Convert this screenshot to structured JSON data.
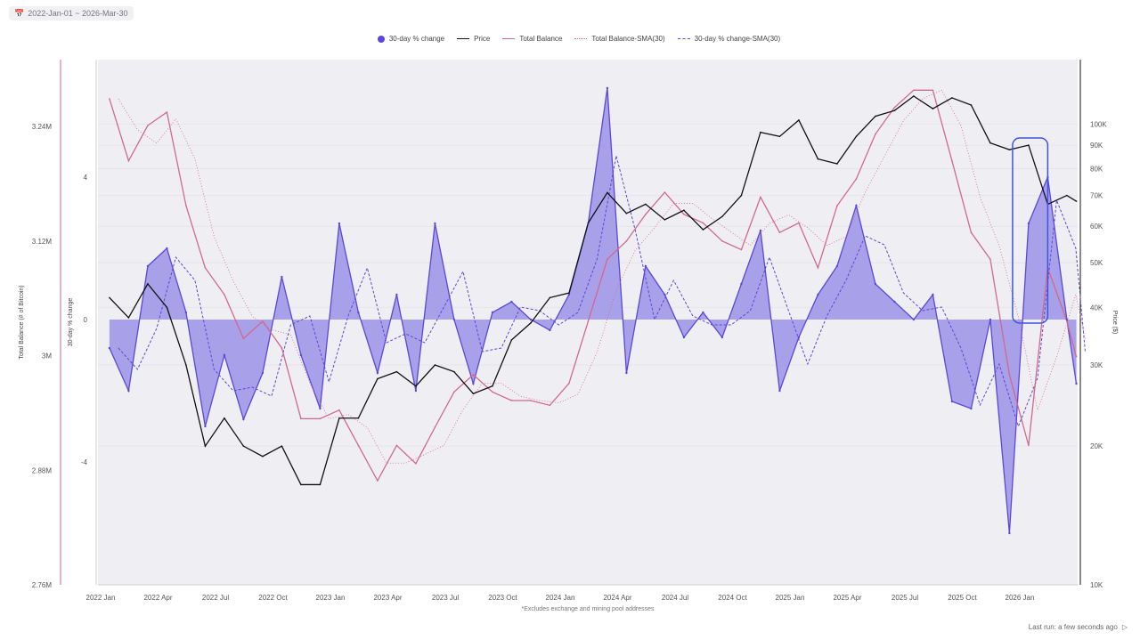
{
  "date_range": "2022-Jan-01 ~ 2026-Mar-30",
  "legend": [
    "30-day % change",
    "Price",
    "Total Balance",
    "Total Balance-SMA(30)",
    "30-day % change-SMA(30)"
  ],
  "footnote": "*Excludes exchange and mining pool addresses",
  "last_run": "Last run: a few seconds ago",
  "colors": {
    "change": "#5b47d6",
    "change_fill": "#9b93e6",
    "price": "#111111",
    "balance": "#d0698a",
    "plot_bg": "#efeff3",
    "highlight": "#3b55e0"
  },
  "chart_data": {
    "type": "line",
    "x": [
      "2022-01",
      "2022-02",
      "2022-03",
      "2022-04",
      "2022-05",
      "2022-06",
      "2022-07",
      "2022-08",
      "2022-09",
      "2022-10",
      "2022-11",
      "2022-12",
      "2023-01",
      "2023-02",
      "2023-03",
      "2023-04",
      "2023-05",
      "2023-06",
      "2023-07",
      "2023-08",
      "2023-09",
      "2023-10",
      "2023-11",
      "2023-12",
      "2024-01",
      "2024-02",
      "2024-03",
      "2024-04",
      "2024-05",
      "2024-06",
      "2024-07",
      "2024-08",
      "2024-09",
      "2024-10",
      "2024-11",
      "2024-12",
      "2025-01",
      "2025-02",
      "2025-03",
      "2025-04",
      "2025-05",
      "2025-06",
      "2025-07",
      "2025-08",
      "2025-09",
      "2025-10",
      "2025-11",
      "2025-12",
      "2026-01",
      "2026-02",
      "2026-03",
      "2026-03-30"
    ],
    "series": [
      {
        "name": "30-day % change",
        "axis": "middle",
        "values": [
          -0.8,
          -2,
          1.5,
          2,
          0.2,
          -3,
          -1,
          -2.8,
          -1.5,
          1.2,
          -1,
          -2.5,
          2.7,
          0.2,
          -1.5,
          0.7,
          -2,
          2.7,
          0,
          -1.8,
          0.2,
          0.5,
          0,
          -0.3,
          0.7,
          2.7,
          6.5,
          -1.5,
          1.5,
          0.7,
          -0.5,
          0.2,
          -0.5,
          1,
          2.5,
          -2,
          -0.5,
          0.7,
          1.5,
          3.2,
          1,
          0.5,
          0,
          0.7,
          -2.3,
          -2.5,
          0,
          -6,
          2.7,
          4,
          0,
          -1.8
        ]
      },
      {
        "name": "Price",
        "axis": "right",
        "values": [
          42000,
          38000,
          45000,
          40000,
          30000,
          20000,
          23000,
          20000,
          19000,
          20000,
          16500,
          16500,
          23000,
          23000,
          28000,
          29000,
          27000,
          30000,
          29000,
          26000,
          27000,
          34000,
          37000,
          42000,
          43000,
          61000,
          71000,
          64000,
          67000,
          62000,
          65000,
          59000,
          63000,
          70000,
          96000,
          94000,
          102000,
          84000,
          82000,
          94000,
          104000,
          107000,
          115000,
          108000,
          114000,
          110000,
          91000,
          88000,
          90000,
          67000,
          70000,
          68000
        ]
      },
      {
        "name": "Total Balance",
        "axis": "left",
        "values": [
          3.269,
          3.204,
          3.241,
          3.255,
          3.157,
          3.092,
          3.064,
          3.018,
          3.036,
          3.008,
          2.934,
          2.934,
          2.943,
          2.906,
          2.869,
          2.906,
          2.887,
          2.925,
          2.962,
          2.98,
          2.962,
          2.953,
          2.953,
          2.948,
          2.971,
          3.036,
          3.101,
          3.12,
          3.148,
          3.171,
          3.148,
          3.139,
          3.12,
          3.111,
          3.166,
          3.129,
          3.139,
          3.092,
          3.157,
          3.185,
          3.232,
          3.26,
          3.278,
          3.278,
          3.204,
          3.129,
          3.101,
          2.98,
          2.906,
          3.092,
          3.036,
          2.999
        ]
      }
    ],
    "sma": [
      "Total Balance-SMA(30)",
      "30-day % change-SMA(30)"
    ],
    "xticks": [
      "2022 Jan",
      "2022 Apr",
      "2022 Jul",
      "2022 Oct",
      "2023 Jan",
      "2023 Apr",
      "2023 Jul",
      "2023 Oct",
      "2024 Jan",
      "2024 Apr",
      "2024 Jul",
      "2024 Oct",
      "2025 Jan",
      "2025 Apr",
      "2025 Jul",
      "2025 Oct",
      "2026 Jan"
    ],
    "left_axis": {
      "label": "Total Balance (# of Bitcoin)",
      "ticks": [
        "3.24M",
        "3.12M",
        "3M",
        "2.88M",
        "2.76M"
      ],
      "tick_values": [
        3.24,
        3.12,
        3.0,
        2.88,
        2.76
      ],
      "range": [
        2.76,
        3.31
      ]
    },
    "middle_axis": {
      "label": "30-day % change",
      "ticks": [
        "4",
        "0",
        "-4"
      ],
      "tick_values": [
        4,
        0,
        -4
      ],
      "range": [
        -7.45,
        7.3
      ]
    },
    "right_axis": {
      "label": "Price ($)",
      "scale": "log",
      "ticks": [
        "100K",
        "90K",
        "80K",
        "70K",
        "60K",
        "50K",
        "40K",
        "30K",
        "20K",
        "10K"
      ],
      "tick_values": [
        100000,
        90000,
        80000,
        70000,
        60000,
        50000,
        40000,
        30000,
        20000,
        10000
      ],
      "range": [
        10000,
        138000
      ]
    },
    "highlight": {
      "from": "2025-12-20",
      "to": "2026-02-15",
      "range_change": [
        -0.1,
        5.1
      ]
    }
  }
}
